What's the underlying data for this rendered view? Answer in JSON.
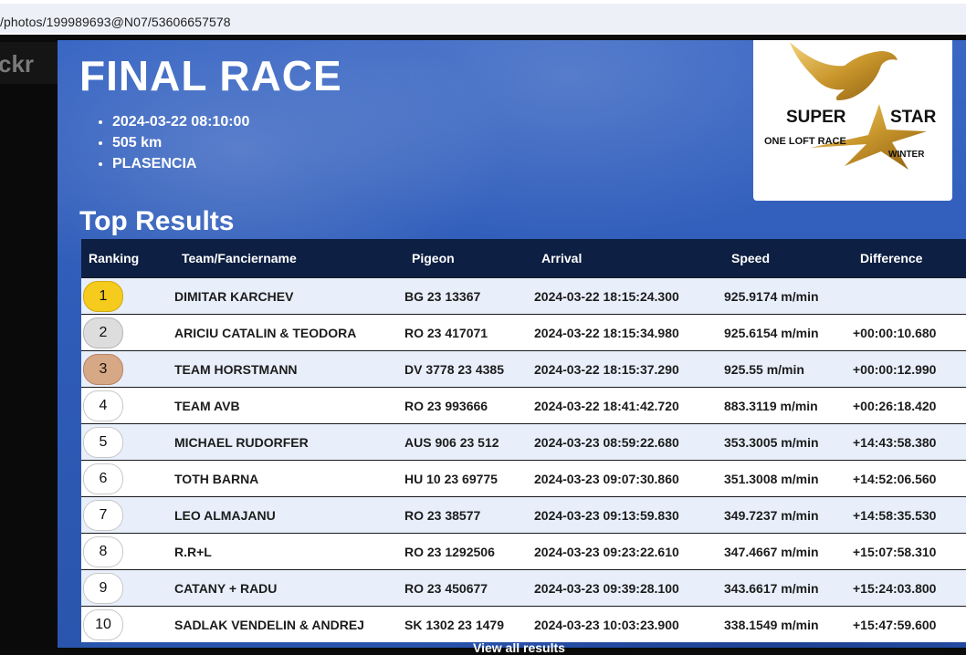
{
  "browser": {
    "url": "/photos/199989693@N07/53606657578"
  },
  "site": {
    "logo_text": "ckr"
  },
  "race": {
    "title": "FINAL RACE",
    "details": [
      "2024-03-22 08:10:00",
      "505 km",
      "PLASENCIA"
    ],
    "logo": {
      "line1_left": "SUPER",
      "line1_right": "STAR",
      "line2": "ONE LOFT RACE",
      "line3": "WINTER",
      "icon": "dove-star-icon"
    }
  },
  "results": {
    "title": "Top Results",
    "columns": [
      "Ranking",
      "Team/Fanciername",
      "Pigeon",
      "Arrival",
      "Speed",
      "Difference"
    ],
    "rows": [
      {
        "rank": "1",
        "team": "DIMITAR KARCHEV",
        "pigeon": "BG 23 13367",
        "arrival": "2024-03-22 18:15:24.300",
        "speed": "925.9174 m/min",
        "diff": ""
      },
      {
        "rank": "2",
        "team": "ARICIU CATALIN & TEODORA",
        "pigeon": "RO 23 417071",
        "arrival": "2024-03-22 18:15:34.980",
        "speed": "925.6154 m/min",
        "diff": "+00:00:10.680"
      },
      {
        "rank": "3",
        "team": "TEAM HORSTMANN",
        "pigeon": "DV 3778 23 4385",
        "arrival": "2024-03-22 18:15:37.290",
        "speed": "925.55 m/min",
        "diff": "+00:00:12.990"
      },
      {
        "rank": "4",
        "team": "TEAM AVB",
        "pigeon": "RO 23 993666",
        "arrival": "2024-03-22 18:41:42.720",
        "speed": "883.3119 m/min",
        "diff": "+00:26:18.420"
      },
      {
        "rank": "5",
        "team": "MICHAEL RUDORFER",
        "pigeon": "AUS 906 23 512",
        "arrival": "2024-03-23 08:59:22.680",
        "speed": "353.3005 m/min",
        "diff": "+14:43:58.380"
      },
      {
        "rank": "6",
        "team": "TOTH BARNA",
        "pigeon": "HU 10 23 69775",
        "arrival": "2024-03-23 09:07:30.860",
        "speed": "351.3008 m/min",
        "diff": "+14:52:06.560"
      },
      {
        "rank": "7",
        "team": "LEO ALMAJANU",
        "pigeon": "RO 23 38577",
        "arrival": "2024-03-23 09:13:59.830",
        "speed": "349.7237 m/min",
        "diff": "+14:58:35.530"
      },
      {
        "rank": "8",
        "team": "R.R+L",
        "pigeon": "RO 23 1292506",
        "arrival": "2024-03-23 09:23:22.610",
        "speed": "347.4667 m/min",
        "diff": "+15:07:58.310"
      },
      {
        "rank": "9",
        "team": "CATANY + RADU",
        "pigeon": "RO 23 450677",
        "arrival": "2024-03-23 09:39:28.100",
        "speed": "343.6617 m/min",
        "diff": "+15:24:03.800"
      },
      {
        "rank": "10",
        "team": "SADLAK VENDELIN & ANDREJ",
        "pigeon": "SK 1302 23 1479",
        "arrival": "2024-03-23 10:03:23.900",
        "speed": "338.1549 m/min",
        "diff": "+15:47:59.600"
      }
    ],
    "view_all": "View all results"
  },
  "colors": {
    "header_bg": "#0d1f42",
    "best_speed": "#2d9a3e",
    "difference": "#d0142c",
    "gold": "#f5cb1d",
    "silver": "#dddddd",
    "bronze": "#d7a886"
  }
}
